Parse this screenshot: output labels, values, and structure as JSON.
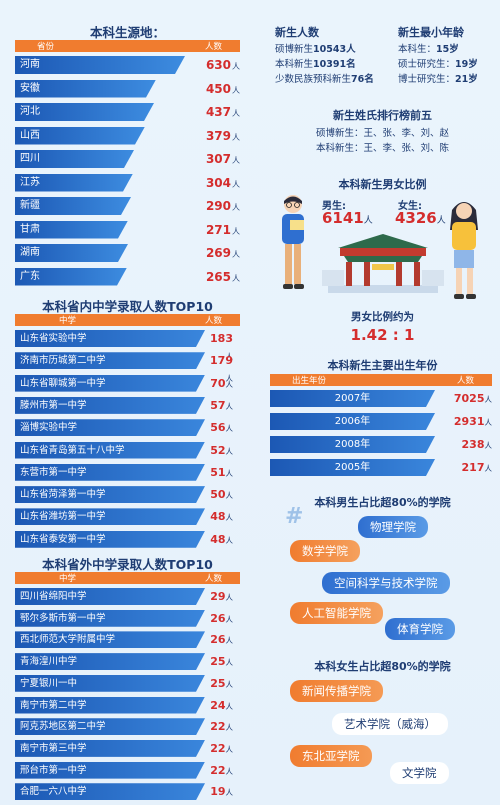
{
  "sources": {
    "title": "本科生源地：",
    "header": {
      "name": "省份",
      "count": "人数"
    },
    "unit": "人",
    "items": [
      {
        "name": "河南",
        "value": 630
      },
      {
        "name": "安徽",
        "value": 450
      },
      {
        "name": "河北",
        "value": 437
      },
      {
        "name": "山西",
        "value": 379
      },
      {
        "name": "四川",
        "value": 307
      },
      {
        "name": "江苏",
        "value": 304
      },
      {
        "name": "新疆",
        "value": 290
      },
      {
        "name": "甘肃",
        "value": 271
      },
      {
        "name": "湖南",
        "value": 269
      },
      {
        "name": "广东",
        "value": 265
      }
    ]
  },
  "newcount": {
    "title": "新生人数",
    "lines": [
      {
        "label": "硕博新生",
        "value": "10543人"
      },
      {
        "label": "本科新生",
        "value": "10391名"
      },
      {
        "label": "少数民族预科新生",
        "value": "76名"
      }
    ]
  },
  "youngest": {
    "title": "新生最小年龄",
    "lines": [
      {
        "label": "本科生：",
        "value": "15岁"
      },
      {
        "label": "硕士研究生：",
        "value": "19岁"
      },
      {
        "label": "博士研究生：",
        "value": "21岁"
      }
    ]
  },
  "surnames": {
    "title": "新生姓氏排行榜前五",
    "lines": [
      "硕博新生：王、张、李、刘、赵",
      "本科新生：王、李、张、刘、陈"
    ]
  },
  "gender": {
    "title": "本科新生男女比例",
    "male_label": "男生:",
    "male_value": "6141",
    "female_label": "女生:",
    "female_value": "4326",
    "unit": "人",
    "ratio_label": "男女比例约为",
    "ratio_value": "1.42 : 1"
  },
  "inprov": {
    "title": "本科省内中学录取人数TOP10",
    "header": {
      "name": "中学",
      "count": "人数"
    },
    "unit": "人",
    "items": [
      {
        "name": "山东省实验中学",
        "value": 183
      },
      {
        "name": "济南市历城第二中学",
        "value": 179
      },
      {
        "name": "山东省聊城第一中学",
        "value": 70
      },
      {
        "name": "滕州市第一中学",
        "value": 57
      },
      {
        "name": "淄博实验中学",
        "value": 56
      },
      {
        "name": "山东省青岛第五十八中学",
        "value": 52
      },
      {
        "name": "东营市第一中学",
        "value": 51
      },
      {
        "name": "山东省菏泽第一中学",
        "value": 50
      },
      {
        "name": "山东省潍坊第一中学",
        "value": 48
      },
      {
        "name": "山东省泰安第一中学",
        "value": 48
      }
    ]
  },
  "years": {
    "title": "本科新生主要出生年份",
    "header": {
      "name": "出生年份",
      "count": "人数"
    },
    "unit": "人",
    "items": [
      {
        "name": "2007年",
        "value": 7025
      },
      {
        "name": "2006年",
        "value": 2931
      },
      {
        "name": "2008年",
        "value": 238
      },
      {
        "name": "2005年",
        "value": 217
      }
    ]
  },
  "outprov": {
    "title": "本科省外中学录取人数TOP10",
    "header": {
      "name": "中学",
      "count": "人数"
    },
    "unit": "人",
    "items": [
      {
        "name": "四川省绵阳中学",
        "value": 29
      },
      {
        "name": "鄂尔多斯市第一中学",
        "value": 26
      },
      {
        "name": "西北师范大学附属中学",
        "value": 26
      },
      {
        "name": "青海湟川中学",
        "value": 25
      },
      {
        "name": "宁夏银川一中",
        "value": 25
      },
      {
        "name": "南宁市第二中学",
        "value": 24
      },
      {
        "name": "阿克苏地区第二中学",
        "value": 22
      },
      {
        "name": "南宁市第三中学",
        "value": 22
      },
      {
        "name": "邢台市第一中学",
        "value": 22
      },
      {
        "name": "合肥一六八中学",
        "value": 19
      }
    ]
  },
  "male_colleges": {
    "title": "本科男生占比超80%的学院",
    "hash": "#",
    "items": [
      "物理学院",
      "数学学院",
      "空间科学与技术学院",
      "人工智能学院",
      "体育学院"
    ]
  },
  "female_colleges": {
    "title": "本科女生占比超80%的学院",
    "items": [
      "新闻传播学院",
      "艺术学院（威海）",
      "东北亚学院",
      "文学院"
    ]
  },
  "colors": {
    "accent": "#f07c2f",
    "bar": "#1c58b4",
    "value": "#d42d2d",
    "text": "#1f3d73"
  }
}
